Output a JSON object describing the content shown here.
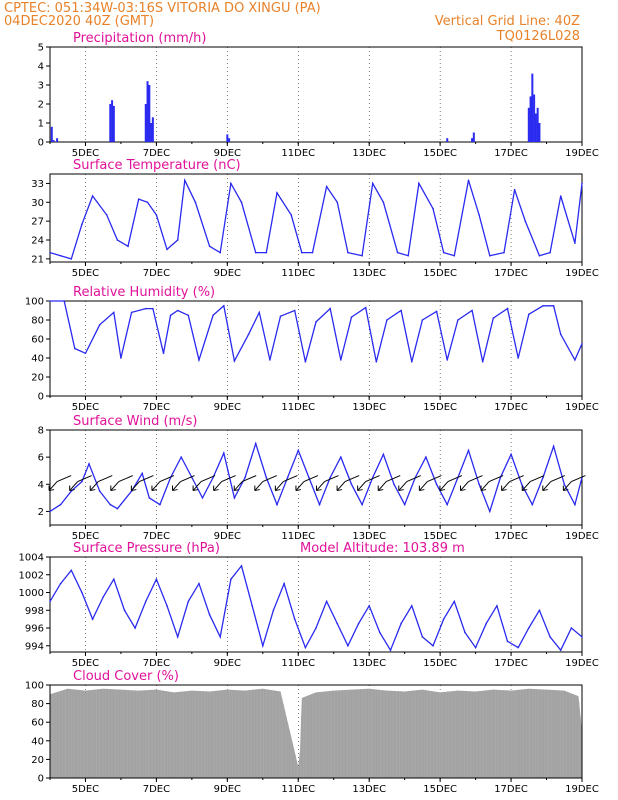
{
  "header": {
    "line1": "CPTEC:  051:34W-03:16S  VITORIA DO XINGU (PA)",
    "line2_left": "04DEC2020 40Z (GMT)",
    "line2_right": "Vertical Grid Line: 40Z",
    "line3_right": "TQ0126L028",
    "color": "#e8822a"
  },
  "colors": {
    "title": "#e0129a",
    "series": "#2a2af0",
    "cloud": "#a8a8a8",
    "frame": "#000000"
  },
  "x_axis": {
    "tick_labels": [
      "5DEC",
      "7DEC",
      "9DEC",
      "11DEC",
      "13DEC",
      "15DEC",
      "17DEC",
      "19DEC"
    ],
    "tick_days": [
      5,
      7,
      9,
      11,
      13,
      15,
      17,
      19
    ],
    "range_days": [
      4.0,
      19.0
    ],
    "vertical_grid_line": "40Z"
  },
  "chart_data": [
    {
      "type": "bar",
      "title": "Precipitation (mm/h)",
      "ylim": [
        0,
        5
      ],
      "yticks": [
        0,
        1,
        2,
        3,
        4,
        5
      ],
      "x": [
        4.05,
        4.1,
        4.2,
        5.7,
        5.75,
        5.8,
        6.7,
        6.75,
        6.8,
        6.85,
        6.9,
        9.0,
        9.05,
        15.2,
        15.9,
        15.95,
        17.5,
        17.55,
        17.6,
        17.65,
        17.7,
        17.75,
        17.8
      ],
      "values": [
        0.8,
        0.1,
        0.2,
        2.0,
        2.2,
        1.9,
        2.0,
        3.2,
        3.0,
        1.0,
        1.3,
        0.4,
        0.2,
        0.2,
        0.2,
        0.5,
        1.8,
        2.4,
        3.6,
        2.5,
        1.5,
        1.8,
        1.0
      ]
    },
    {
      "type": "line",
      "title": "Surface Temperature (nC)",
      "ylim": [
        20.5,
        34.5
      ],
      "yticks": [
        21,
        24,
        27,
        30,
        33
      ],
      "x": [
        4.0,
        4.3,
        4.6,
        4.9,
        5.2,
        5.6,
        5.9,
        6.2,
        6.5,
        6.75,
        7.0,
        7.3,
        7.6,
        7.8,
        8.1,
        8.5,
        8.8,
        9.1,
        9.4,
        9.8,
        10.1,
        10.4,
        10.8,
        11.1,
        11.4,
        11.8,
        12.1,
        12.4,
        12.8,
        13.1,
        13.4,
        13.8,
        14.1,
        14.4,
        14.8,
        15.1,
        15.4,
        15.8,
        16.1,
        16.4,
        16.8,
        17.1,
        17.4,
        17.8,
        18.1,
        18.4,
        18.8,
        19.0
      ],
      "values": [
        22.0,
        21.5,
        21.0,
        26.5,
        31.0,
        28.0,
        24.0,
        23.0,
        30.5,
        30.0,
        28.0,
        22.5,
        24.0,
        33.5,
        30.0,
        23.0,
        22.0,
        33.0,
        30.0,
        22.0,
        22.0,
        31.5,
        28.0,
        22.0,
        22.0,
        32.5,
        30.0,
        22.0,
        21.5,
        33.0,
        30.0,
        22.0,
        21.5,
        33.0,
        29.0,
        22.0,
        21.5,
        33.5,
        28.0,
        21.5,
        22.0,
        32.0,
        27.0,
        21.5,
        22.0,
        31.0,
        23.5,
        33.0
      ]
    },
    {
      "type": "line",
      "title": "Relative Humidity (%)",
      "ylim": [
        0,
        100
      ],
      "yticks": [
        0,
        20,
        40,
        60,
        80,
        100
      ],
      "x": [
        4.0,
        4.4,
        4.7,
        5.0,
        5.4,
        5.8,
        6.0,
        6.3,
        6.7,
        6.9,
        7.2,
        7.4,
        7.6,
        7.9,
        8.2,
        8.6,
        8.9,
        9.2,
        9.6,
        9.9,
        10.2,
        10.5,
        10.9,
        11.2,
        11.5,
        11.9,
        12.2,
        12.5,
        12.9,
        13.2,
        13.5,
        13.9,
        14.2,
        14.5,
        14.9,
        15.2,
        15.5,
        15.9,
        16.2,
        16.5,
        16.9,
        17.2,
        17.5,
        17.9,
        18.2,
        18.4,
        18.8,
        19.0
      ],
      "values": [
        100,
        100,
        50,
        45,
        75,
        88,
        40,
        88,
        92,
        92,
        45,
        85,
        90,
        85,
        38,
        85,
        95,
        37,
        65,
        88,
        38,
        84,
        90,
        36,
        78,
        92,
        38,
        83,
        93,
        36,
        80,
        90,
        36,
        80,
        89,
        38,
        80,
        90,
        36,
        82,
        92,
        40,
        86,
        95,
        95,
        65,
        38,
        55
      ]
    },
    {
      "type": "line",
      "title": "Surface Wind (m/s)",
      "ylim": [
        1,
        8
      ],
      "yticks": [
        2,
        4,
        6,
        8
      ],
      "has_wind_barbs": true,
      "x": [
        4.0,
        4.3,
        4.6,
        4.9,
        5.1,
        5.4,
        5.7,
        5.9,
        6.3,
        6.6,
        6.8,
        7.1,
        7.4,
        7.7,
        8.0,
        8.3,
        8.6,
        8.9,
        9.2,
        9.5,
        9.8,
        10.1,
        10.4,
        10.7,
        11.0,
        11.3,
        11.6,
        11.9,
        12.2,
        12.5,
        12.8,
        13.1,
        13.4,
        13.7,
        14.0,
        14.3,
        14.6,
        14.9,
        15.2,
        15.5,
        15.8,
        16.1,
        16.4,
        16.7,
        17.0,
        17.3,
        17.6,
        17.9,
        18.2,
        18.5,
        18.8,
        19.0
      ],
      "values": [
        2.0,
        2.5,
        3.5,
        4.2,
        5.5,
        3.5,
        2.5,
        2.2,
        3.5,
        4.8,
        3.0,
        2.5,
        4.5,
        6.0,
        4.5,
        3.0,
        4.5,
        6.3,
        3.0,
        4.5,
        7.0,
        4.5,
        2.5,
        4.5,
        6.5,
        4.5,
        2.5,
        4.5,
        6.0,
        4.0,
        2.5,
        4.5,
        6.2,
        4.0,
        2.5,
        4.5,
        6.0,
        4.0,
        2.5,
        4.5,
        6.5,
        4.0,
        2.0,
        4.5,
        6.2,
        4.0,
        2.5,
        4.5,
        6.8,
        4.0,
        2.5,
        4.5
      ]
    },
    {
      "type": "line",
      "title": "Surface Pressure (hPa)",
      "annotation": "Model Altitude: 103.89 m",
      "ylim": [
        993.3,
        1004
      ],
      "yticks": [
        994,
        996,
        998,
        1000,
        1002,
        1004
      ],
      "x": [
        4.0,
        4.3,
        4.6,
        4.9,
        5.2,
        5.5,
        5.8,
        6.1,
        6.4,
        6.7,
        7.0,
        7.3,
        7.6,
        7.9,
        8.2,
        8.5,
        8.8,
        9.1,
        9.4,
        9.7,
        10.0,
        10.3,
        10.6,
        10.9,
        11.2,
        11.5,
        11.8,
        12.1,
        12.4,
        12.7,
        13.0,
        13.3,
        13.6,
        13.9,
        14.2,
        14.5,
        14.8,
        15.1,
        15.4,
        15.7,
        16.0,
        16.3,
        16.6,
        16.9,
        17.2,
        17.5,
        17.8,
        18.1,
        18.4,
        18.7,
        19.0
      ],
      "values": [
        999.0,
        1001.0,
        1002.5,
        1000.0,
        997.0,
        999.5,
        1001.5,
        998.0,
        996.0,
        999.0,
        1001.5,
        998.5,
        995.0,
        999.0,
        1001.0,
        997.5,
        995.0,
        1001.5,
        1003.0,
        998.5,
        994.0,
        998.0,
        1001.0,
        997.0,
        993.8,
        996.0,
        999.0,
        996.5,
        994.0,
        996.5,
        998.5,
        995.5,
        993.5,
        996.5,
        998.5,
        995.0,
        994.0,
        997.0,
        999.0,
        995.5,
        993.8,
        996.5,
        998.5,
        994.5,
        993.8,
        996.0,
        998.0,
        995.0,
        993.5,
        996.0,
        995.0
      ]
    },
    {
      "type": "area",
      "title": "Cloud Cover (%)",
      "ylim": [
        0,
        100
      ],
      "yticks": [
        0,
        20,
        40,
        60,
        80,
        100
      ],
      "x": [
        4.0,
        4.5,
        5.0,
        5.5,
        6.0,
        6.5,
        7.0,
        7.5,
        8.0,
        8.5,
        9.0,
        9.5,
        10.0,
        10.5,
        11.0,
        11.05,
        11.1,
        11.5,
        12.0,
        12.5,
        13.0,
        13.5,
        14.0,
        14.5,
        15.0,
        15.5,
        16.0,
        16.5,
        17.0,
        17.5,
        18.0,
        18.5,
        18.9,
        19.0
      ],
      "values": [
        90,
        96,
        94,
        96,
        95,
        94,
        95,
        92,
        94,
        93,
        95,
        94,
        96,
        93,
        12,
        30,
        86,
        92,
        94,
        95,
        96,
        94,
        93,
        95,
        92,
        94,
        93,
        95,
        94,
        96,
        95,
        94,
        88,
        50
      ]
    }
  ]
}
